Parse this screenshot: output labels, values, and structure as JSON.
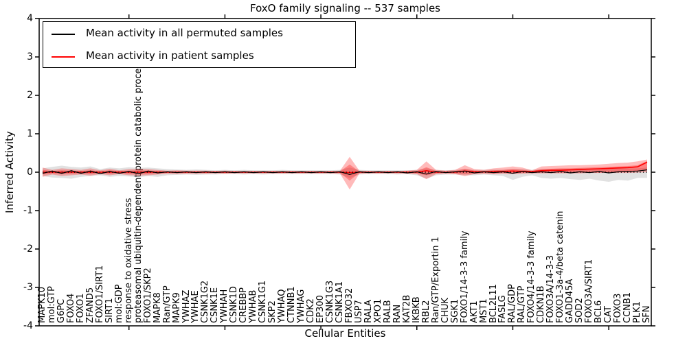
{
  "title": "FoxO family signaling -- 537 samples",
  "axes": {
    "ylabel": "Inferred Activity",
    "xlabel": "Cellular Entities",
    "yticks": [
      4,
      3,
      2,
      1,
      0,
      -1,
      -2,
      -3,
      -4
    ],
    "ylim": [
      -4,
      4
    ],
    "x_major_tick_positions": [
      10,
      20,
      30,
      40,
      50,
      60
    ]
  },
  "legend": {
    "items": [
      {
        "label": "Mean activity in all permuted samples",
        "color": "#000000"
      },
      {
        "label": "Mean activity in patient samples",
        "color": "#ff0000"
      }
    ]
  },
  "colors": {
    "permuted_line": "#000000",
    "patient_line": "#ff0000",
    "permuted_band": "#aaaaaa",
    "patient_band": "#ff0000",
    "zero_line": "#000000",
    "frame": "#000000"
  },
  "chart_data": {
    "type": "line",
    "title": "FoxO family signaling -- 537 samples",
    "xlabel": "Cellular Entities",
    "ylabel": "Inferred Activity",
    "ylim": [
      -4,
      4
    ],
    "grid": false,
    "legend_position": "upper left",
    "categories": [
      "MAPK10",
      "mol:GTP",
      "G6PC",
      "FOXO4",
      "FOXO1",
      "ZFAND5",
      "FOXO1/SIRT1",
      "SIRT1",
      "mol:GDP",
      "response to oxidative stress",
      "proteasomal ubiquitin-dependent protein catabolic process",
      "FOXO1/SKP2",
      "MAPK8",
      "Ran/GTP",
      "MAPK9",
      "YWHAZ",
      "YWHAE",
      "CSNK1G2",
      "CSNK1E",
      "YWHAH",
      "CSNK1D",
      "CREBBP",
      "YWHAB",
      "CSNK1G1",
      "SKP2",
      "YWHAQ",
      "CTNNB1",
      "YWHAG",
      "CDK2",
      "EP300",
      "CSNK1G3",
      "CSNK1A1",
      "FBXO32",
      "USP7",
      "RALA",
      "XPO1",
      "RALB",
      "RAN",
      "KAT2B",
      "IKBKB",
      "RBL2",
      "Ran/GTP/Exportin 1",
      "CHUK",
      "SGK1",
      "FOXO1/14-3-3 family",
      "AKT1",
      "MST1",
      "BCL2L11",
      "FASLG",
      "RAL/GDP",
      "RAL/GTP",
      "FOXO4/14-3-3 family",
      "CDKN1B",
      "FOXO3A/14-3-3",
      "FOXO1-3a-4/beta catenin",
      "GADD45A",
      "SOD2",
      "FOXO3A/SIRT1",
      "BCL6",
      "CAT",
      "FOXO3",
      "CCNB1",
      "PLK1",
      "SFN"
    ],
    "series": [
      {
        "name": "Mean activity in all permuted samples",
        "color": "#000000",
        "values": [
          -0.03,
          0.03,
          -0.03,
          0.04,
          -0.03,
          0.03,
          -0.04,
          0.02,
          -0.03,
          0.02,
          -0.04,
          0.03,
          -0.02,
          0.01,
          -0.01,
          0.01,
          -0.01,
          0.01,
          -0.01,
          0.01,
          -0.01,
          0.01,
          -0.01,
          0.01,
          -0.01,
          0.01,
          -0.01,
          0.01,
          -0.01,
          0.01,
          -0.01,
          0.01,
          -0.06,
          0.01,
          -0.01,
          0.01,
          -0.01,
          0.01,
          -0.02,
          0.01,
          -0.05,
          0.02,
          -0.01,
          0.01,
          0.03,
          -0.02,
          0.01,
          -0.01,
          0.01,
          -0.03,
          0.02,
          -0.01,
          0.01,
          -0.01,
          0.02,
          -0.02,
          0.01,
          -0.01,
          0.02,
          -0.02,
          0.01,
          0.02,
          0.03,
          0.06
        ]
      },
      {
        "name": "Mean activity in patient samples",
        "color": "#ff0000",
        "values": [
          0,
          0,
          0,
          0,
          0,
          0,
          0,
          0,
          0,
          0,
          0,
          0,
          0,
          0,
          0,
          0,
          0,
          0,
          0,
          0,
          0,
          0,
          0,
          0,
          0,
          0,
          0,
          0,
          0,
          0,
          0,
          0,
          -0.01,
          0,
          0,
          0,
          0,
          0,
          0,
          0,
          0.04,
          0,
          0,
          0,
          0.03,
          0.01,
          0.01,
          0.02,
          0.02,
          0.03,
          0.02,
          0.02,
          0.04,
          0.05,
          0.05,
          0.06,
          0.07,
          0.08,
          0.09,
          0.1,
          0.11,
          0.12,
          0.14,
          0.26
        ]
      }
    ],
    "bands": [
      {
        "name": "permuted-samples-range",
        "color": "#aaaaaa",
        "opacity": 0.35,
        "top": [
          0.1,
          0.14,
          0.17,
          0.14,
          0.12,
          0.15,
          0.08,
          0.12,
          0.1,
          0.13,
          0.11,
          0.12,
          0.1,
          0.08,
          0.07,
          0.06,
          0.07,
          0.06,
          0.05,
          0.06,
          0.05,
          0.06,
          0.05,
          0.05,
          0.05,
          0.06,
          0.05,
          0.05,
          0.05,
          0.05,
          0.05,
          0.06,
          0.12,
          0.06,
          0.05,
          0.05,
          0.05,
          0.05,
          0.05,
          0.06,
          0.1,
          0.06,
          0.05,
          0.06,
          0.08,
          0.06,
          0.06,
          0.07,
          0.06,
          0.08,
          0.08,
          0.06,
          0.08,
          0.08,
          0.09,
          0.09,
          0.1,
          0.1,
          0.1,
          0.1,
          0.1,
          0.1,
          0.1,
          0.12
        ],
        "bottom": [
          -0.1,
          -0.14,
          -0.15,
          -0.17,
          -0.12,
          -0.1,
          -0.08,
          -0.12,
          -0.1,
          -0.11,
          -0.13,
          -0.1,
          -0.12,
          -0.08,
          -0.07,
          -0.06,
          -0.07,
          -0.06,
          -0.06,
          -0.05,
          -0.05,
          -0.06,
          -0.05,
          -0.06,
          -0.05,
          -0.05,
          -0.05,
          -0.05,
          -0.05,
          -0.05,
          -0.05,
          -0.06,
          -0.15,
          -0.06,
          -0.05,
          -0.05,
          -0.05,
          -0.06,
          -0.05,
          -0.08,
          -0.17,
          -0.08,
          -0.06,
          -0.06,
          -0.08,
          -0.08,
          -0.06,
          -0.08,
          -0.1,
          -0.2,
          -0.12,
          -0.08,
          -0.15,
          -0.17,
          -0.15,
          -0.18,
          -0.2,
          -0.17,
          -0.22,
          -0.25,
          -0.2,
          -0.22,
          -0.15,
          -0.15
        ]
      },
      {
        "name": "patient-samples-range-outer",
        "color": "#ff0000",
        "opacity": 0.27,
        "top": [
          0.12,
          0.06,
          0.1,
          0.08,
          0.06,
          0.1,
          0.05,
          0.09,
          0.05,
          0.08,
          0.09,
          0.08,
          0.06,
          0.04,
          0.05,
          0.04,
          0.04,
          0.04,
          0.03,
          0.04,
          0.03,
          0.03,
          0.03,
          0.03,
          0.03,
          0.03,
          0.03,
          0.03,
          0.03,
          0.03,
          0.03,
          0.04,
          0.4,
          0.04,
          0.03,
          0.03,
          0.03,
          0.03,
          0.04,
          0.06,
          0.28,
          0.06,
          0.04,
          0.06,
          0.18,
          0.08,
          0.06,
          0.1,
          0.12,
          0.15,
          0.12,
          0.05,
          0.15,
          0.16,
          0.17,
          0.18,
          0.18,
          0.19,
          0.2,
          0.22,
          0.24,
          0.25,
          0.28,
          0.33
        ],
        "bottom": [
          -0.12,
          -0.06,
          -0.1,
          -0.08,
          -0.06,
          -0.09,
          -0.05,
          -0.08,
          -0.05,
          -0.08,
          -0.09,
          -0.08,
          -0.06,
          -0.04,
          -0.05,
          -0.04,
          -0.04,
          -0.04,
          -0.03,
          -0.04,
          -0.03,
          -0.03,
          -0.03,
          -0.03,
          -0.03,
          -0.03,
          -0.03,
          -0.03,
          -0.03,
          -0.03,
          -0.03,
          -0.04,
          -0.45,
          -0.04,
          -0.03,
          -0.03,
          -0.03,
          -0.03,
          -0.04,
          -0.05,
          -0.18,
          -0.05,
          -0.04,
          -0.05,
          -0.1,
          -0.05,
          -0.04,
          -0.05,
          -0.04,
          -0.05,
          -0.04,
          -0.03,
          -0.03,
          -0.03,
          -0.03,
          -0.03,
          -0.03,
          -0.02,
          -0.02,
          -0.02,
          -0.02,
          -0.02,
          -0.01,
          0.0
        ]
      },
      {
        "name": "patient-samples-range-inner",
        "color": "#ff0000",
        "opacity": 0.3,
        "top": [
          0.06,
          0.03,
          0.05,
          0.04,
          0.03,
          0.05,
          0.02,
          0.05,
          0.03,
          0.04,
          0.05,
          0.04,
          0.03,
          0.02,
          0.02,
          0.02,
          0.02,
          0.02,
          0.02,
          0.02,
          0.02,
          0.02,
          0.02,
          0.02,
          0.02,
          0.02,
          0.02,
          0.02,
          0.02,
          0.02,
          0.02,
          0.02,
          0.2,
          0.02,
          0.02,
          0.02,
          0.02,
          0.02,
          0.02,
          0.03,
          0.13,
          0.03,
          0.02,
          0.03,
          0.09,
          0.04,
          0.03,
          0.05,
          0.06,
          0.08,
          0.06,
          0.03,
          0.08,
          0.09,
          0.1,
          0.1,
          0.11,
          0.12,
          0.13,
          0.14,
          0.15,
          0.16,
          0.18,
          0.29
        ],
        "bottom": [
          -0.06,
          -0.03,
          -0.05,
          -0.04,
          -0.03,
          -0.05,
          -0.02,
          -0.04,
          -0.03,
          -0.04,
          -0.05,
          -0.04,
          -0.03,
          -0.02,
          -0.02,
          -0.02,
          -0.02,
          -0.02,
          -0.02,
          -0.02,
          -0.02,
          -0.02,
          -0.02,
          -0.02,
          -0.02,
          -0.02,
          -0.02,
          -0.02,
          -0.02,
          -0.02,
          -0.02,
          -0.02,
          -0.22,
          -0.02,
          -0.02,
          -0.02,
          -0.02,
          -0.02,
          -0.02,
          -0.03,
          -0.08,
          -0.03,
          -0.02,
          -0.03,
          -0.05,
          -0.03,
          -0.02,
          -0.03,
          -0.02,
          -0.03,
          -0.02,
          -0.02,
          -0.01,
          -0.01,
          -0.01,
          -0.01,
          -0.01,
          -0.01,
          -0.01,
          -0.01,
          0.0,
          0.0,
          0.02,
          0.05
        ]
      }
    ],
    "zero_line": true
  }
}
